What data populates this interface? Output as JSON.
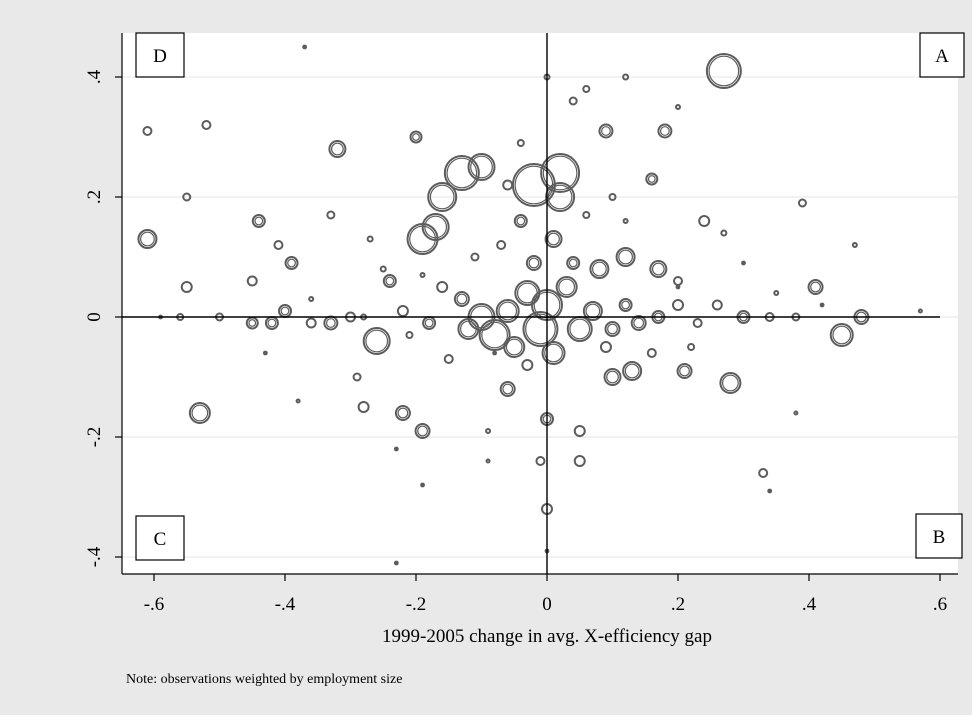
{
  "chart_data": {
    "type": "scatter",
    "title": "",
    "xlabel": "1999-2005 change in avg. X-efficiency gap",
    "ylabel": "",
    "note": "Note: observations weighted by employment size",
    "xlim": [
      -0.64,
      0.64
    ],
    "ylim": [
      -0.43,
      0.48
    ],
    "xticks": [
      -0.6,
      -0.4,
      -0.2,
      0,
      0.2,
      0.4,
      0.6
    ],
    "xtick_labels": [
      "-.6",
      "-.4",
      "-.2",
      "0",
      ".2",
      ".4",
      ".6"
    ],
    "yticks": [
      -0.4,
      -0.2,
      0,
      0.2,
      0.4
    ],
    "ytick_labels": [
      "-.4",
      "-.2",
      "0",
      ".2",
      ".4"
    ],
    "grid": "horizontal",
    "legend": "none",
    "colors": {
      "background": "#e9e9e9",
      "plot": "#ffffff",
      "marker": "#5c5c5c",
      "axis": "#000000",
      "grid": "#e6e6e6"
    },
    "quadrant_labels": {
      "top_right": "A",
      "bottom_right": "B",
      "bottom_left": "C",
      "top_left": "D"
    },
    "marker": "hollow-circle, size proportional to employment",
    "series": [
      {
        "points": [
          {
            "x": 0.27,
            "y": 0.41,
            "s": 34
          },
          {
            "x": 0.02,
            "y": 0.24,
            "s": 38
          },
          {
            "x": -0.02,
            "y": 0.22,
            "s": 42
          },
          {
            "x": -0.13,
            "y": 0.24,
            "s": 34
          },
          {
            "x": -0.16,
            "y": 0.2,
            "s": 28
          },
          {
            "x": -0.19,
            "y": 0.13,
            "s": 30
          },
          {
            "x": -0.17,
            "y": 0.15,
            "s": 26
          },
          {
            "x": -0.1,
            "y": 0.25,
            "s": 26
          },
          {
            "x": -0.32,
            "y": 0.28,
            "s": 16
          },
          {
            "x": -0.2,
            "y": 0.3,
            "s": 11
          },
          {
            "x": 0.12,
            "y": 0.1,
            "s": 18
          },
          {
            "x": 0.09,
            "y": 0.31,
            "s": 13
          },
          {
            "x": 0.18,
            "y": 0.31,
            "s": 13
          },
          {
            "x": 0.16,
            "y": 0.23,
            "s": 11
          },
          {
            "x": 0.02,
            "y": 0.2,
            "s": 28
          },
          {
            "x": -0.61,
            "y": 0.13,
            "s": 18
          },
          {
            "x": -0.61,
            "y": 0.31,
            "s": 8
          },
          {
            "x": -0.52,
            "y": 0.32,
            "s": 8
          },
          {
            "x": -0.55,
            "y": 0.2,
            "s": 7
          },
          {
            "x": -0.44,
            "y": 0.16,
            "s": 12
          },
          {
            "x": -0.41,
            "y": 0.12,
            "s": 8
          },
          {
            "x": -0.39,
            "y": 0.09,
            "s": 12
          },
          {
            "x": -0.33,
            "y": 0.17,
            "s": 7
          },
          {
            "x": -0.55,
            "y": 0.05,
            "s": 10
          },
          {
            "x": -0.45,
            "y": 0.06,
            "s": 9
          },
          {
            "x": -0.53,
            "y": -0.16,
            "s": 20
          },
          {
            "x": -0.56,
            "y": 0,
            "s": 6
          },
          {
            "x": -0.5,
            "y": 0,
            "s": 7
          },
          {
            "x": -0.45,
            "y": -0.01,
            "s": 11
          },
          {
            "x": -0.42,
            "y": -0.01,
            "s": 12
          },
          {
            "x": -0.4,
            "y": 0.01,
            "s": 12
          },
          {
            "x": -0.36,
            "y": -0.01,
            "s": 9
          },
          {
            "x": -0.33,
            "y": -0.01,
            "s": 13
          },
          {
            "x": -0.3,
            "y": 0,
            "s": 9
          },
          {
            "x": -0.26,
            "y": -0.04,
            "s": 26
          },
          {
            "x": -0.24,
            "y": 0.06,
            "s": 12
          },
          {
            "x": -0.22,
            "y": -0.16,
            "s": 14
          },
          {
            "x": -0.19,
            "y": -0.19,
            "s": 14
          },
          {
            "x": -0.28,
            "y": -0.15,
            "s": 10
          },
          {
            "x": -0.22,
            "y": 0.01,
            "s": 10
          },
          {
            "x": -0.18,
            "y": -0.01,
            "s": 12
          },
          {
            "x": -0.16,
            "y": 0.05,
            "s": 10
          },
          {
            "x": -0.13,
            "y": 0.03,
            "s": 14
          },
          {
            "x": -0.12,
            "y": -0.02,
            "s": 20
          },
          {
            "x": -0.1,
            "y": 0.0,
            "s": 26
          },
          {
            "x": -0.08,
            "y": -0.03,
            "s": 30
          },
          {
            "x": -0.06,
            "y": 0.01,
            "s": 22
          },
          {
            "x": -0.05,
            "y": -0.05,
            "s": 20
          },
          {
            "x": -0.03,
            "y": 0.04,
            "s": 24
          },
          {
            "x": -0.01,
            "y": -0.02,
            "s": 34
          },
          {
            "x": 0.0,
            "y": 0.02,
            "s": 30
          },
          {
            "x": 0.01,
            "y": -0.06,
            "s": 22
          },
          {
            "x": 0.03,
            "y": 0.05,
            "s": 20
          },
          {
            "x": 0.05,
            "y": -0.02,
            "s": 24
          },
          {
            "x": 0.07,
            "y": 0.01,
            "s": 18
          },
          {
            "x": 0.08,
            "y": 0.08,
            "s": 18
          },
          {
            "x": 0.1,
            "y": -0.02,
            "s": 14
          },
          {
            "x": 0.12,
            "y": 0.02,
            "s": 12
          },
          {
            "x": 0.14,
            "y": -0.01,
            "s": 14
          },
          {
            "x": 0.17,
            "y": 0.0,
            "s": 12
          },
          {
            "x": 0.2,
            "y": 0.02,
            "s": 10
          },
          {
            "x": 0.23,
            "y": -0.01,
            "s": 8
          },
          {
            "x": 0.26,
            "y": 0.02,
            "s": 9
          },
          {
            "x": 0.3,
            "y": 0.0,
            "s": 12
          },
          {
            "x": 0.34,
            "y": 0.0,
            "s": 8
          },
          {
            "x": 0.38,
            "y": 0.0,
            "s": 7
          },
          {
            "x": 0.41,
            "y": 0.05,
            "s": 14
          },
          {
            "x": 0.45,
            "y": -0.03,
            "s": 22
          },
          {
            "x": 0.48,
            "y": 0.0,
            "s": 14
          },
          {
            "x": 0.13,
            "y": -0.09,
            "s": 18
          },
          {
            "x": 0.1,
            "y": -0.1,
            "s": 16
          },
          {
            "x": 0.21,
            "y": -0.09,
            "s": 14
          },
          {
            "x": 0.28,
            "y": -0.11,
            "s": 20
          },
          {
            "x": 0.24,
            "y": 0.16,
            "s": 10
          },
          {
            "x": -0.06,
            "y": -0.12,
            "s": 14
          },
          {
            "x": 0.0,
            "y": -0.17,
            "s": 12
          },
          {
            "x": 0.05,
            "y": -0.19,
            "s": 10
          },
          {
            "x": 0.05,
            "y": -0.24,
            "s": 10
          },
          {
            "x": 0.0,
            "y": -0.32,
            "s": 10
          },
          {
            "x": -0.01,
            "y": -0.24,
            "s": 8
          },
          {
            "x": 0.33,
            "y": -0.26,
            "s": 8
          },
          {
            "x": -0.04,
            "y": 0.16,
            "s": 12
          },
          {
            "x": 0.01,
            "y": 0.13,
            "s": 16
          },
          {
            "x": -0.07,
            "y": 0.12,
            "s": 8
          },
          {
            "x": 0.0,
            "y": 0.4,
            "s": 5
          },
          {
            "x": 0.04,
            "y": 0.36,
            "s": 7
          },
          {
            "x": 0.06,
            "y": 0.38,
            "s": 6
          },
          {
            "x": 0.12,
            "y": 0.4,
            "s": 5
          },
          {
            "x": 0.2,
            "y": 0.35,
            "s": 4
          },
          {
            "x": 0.39,
            "y": 0.19,
            "s": 7
          },
          {
            "x": 0.47,
            "y": 0.12,
            "s": 4
          },
          {
            "x": 0.27,
            "y": 0.14,
            "s": 5
          },
          {
            "x": 0.17,
            "y": 0.08,
            "s": 16
          },
          {
            "x": -0.04,
            "y": 0.29,
            "s": 6
          },
          {
            "x": -0.27,
            "y": 0.13,
            "s": 5
          },
          {
            "x": -0.25,
            "y": 0.08,
            "s": 5
          },
          {
            "x": -0.29,
            "y": -0.1,
            "s": 7
          },
          {
            "x": -0.28,
            "y": 0.0,
            "s": 5
          },
          {
            "x": -0.21,
            "y": -0.03,
            "s": 6
          },
          {
            "x": 0.57,
            "y": 0.01,
            "s": 3
          },
          {
            "x": 0.38,
            "y": -0.16,
            "s": 3
          },
          {
            "x": -0.38,
            "y": -0.14,
            "s": 3
          },
          {
            "x": -0.09,
            "y": -0.19,
            "s": 4
          },
          {
            "x": -0.09,
            "y": -0.24,
            "s": 3
          },
          {
            "x": 0.06,
            "y": 0.17,
            "s": 6
          },
          {
            "x": 0.1,
            "y": 0.2,
            "s": 6
          },
          {
            "x": 0.12,
            "y": 0.16,
            "s": 4
          },
          {
            "x": -0.11,
            "y": 0.1,
            "s": 7
          },
          {
            "x": -0.06,
            "y": 0.22,
            "s": 9
          },
          {
            "x": 0.2,
            "y": 0.06,
            "s": 8
          },
          {
            "x": 0.22,
            "y": -0.05,
            "s": 6
          },
          {
            "x": 0.16,
            "y": -0.06,
            "s": 8
          },
          {
            "x": 0.35,
            "y": 0.04,
            "s": 4
          },
          {
            "x": -0.36,
            "y": 0.03,
            "s": 4
          },
          {
            "x": -0.19,
            "y": 0.07,
            "s": 4
          },
          {
            "x": -0.15,
            "y": -0.07,
            "s": 8
          },
          {
            "x": -0.03,
            "y": -0.08,
            "s": 10
          },
          {
            "x": 0.09,
            "y": -0.05,
            "s": 10
          },
          {
            "x": -0.02,
            "y": 0.09,
            "s": 14
          },
          {
            "x": 0.04,
            "y": 0.09,
            "s": 12
          }
        ]
      },
      {
        "name": "",
        "dots": [
          {
            "x": -0.37,
            "y": 0.45
          },
          {
            "x": -0.23,
            "y": -0.22
          },
          {
            "x": 0.34,
            "y": -0.29
          },
          {
            "x": -0.23,
            "y": -0.41
          },
          {
            "x": 0.0,
            "y": -0.39
          },
          {
            "x": -0.19,
            "y": -0.28
          },
          {
            "x": 0.3,
            "y": 0.09
          },
          {
            "x": 0.42,
            "y": 0.02
          },
          {
            "x": -0.59,
            "y": 0.0
          },
          {
            "x": -0.43,
            "y": -0.06
          },
          {
            "x": 0.2,
            "y": 0.05
          },
          {
            "x": -0.08,
            "y": -0.06
          }
        ]
      }
    ]
  }
}
